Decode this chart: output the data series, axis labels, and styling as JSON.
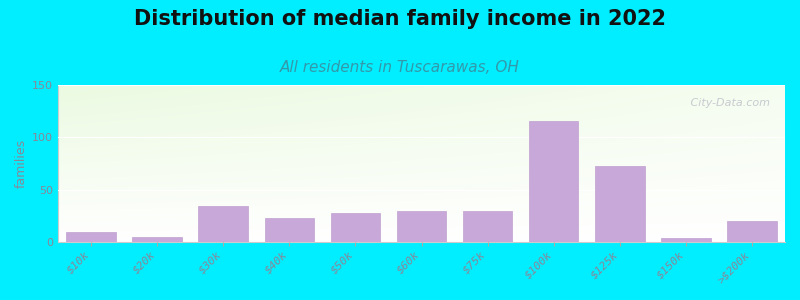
{
  "title": "Distribution of median family income in 2022",
  "subtitle": "All residents in Tuscarawas, OH",
  "ylabel": "families",
  "categories": [
    "$10k",
    "$20k",
    "$30k",
    "$40k",
    "$50k",
    "$60k",
    "$75k",
    "$100k",
    "$125k",
    "$150k",
    ">$200k"
  ],
  "values": [
    10,
    5,
    35,
    23,
    28,
    30,
    30,
    116,
    73,
    4,
    20
  ],
  "bar_color": "#c8a8d8",
  "bar_edge_color": "#c0a0d0",
  "ylim": [
    0,
    150
  ],
  "yticks": [
    0,
    50,
    100,
    150
  ],
  "background_color": "#00eeff",
  "title_fontsize": 15,
  "subtitle_fontsize": 11,
  "subtitle_color": "#3399aa",
  "ylabel_fontsize": 9,
  "tick_label_color": "#888899",
  "watermark": " City-Data.com"
}
